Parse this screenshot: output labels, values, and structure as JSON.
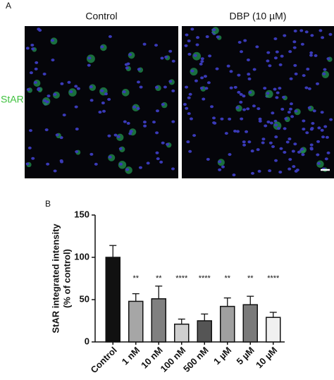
{
  "panel_a": {
    "label": "A",
    "columns": [
      "Control",
      "DBP (10 µM)"
    ],
    "row_label": "StAR"
  },
  "chart_data": {
    "type": "bar",
    "panel_label": "B",
    "ylabel": [
      "StAR integrated intensity",
      "(% of control)"
    ],
    "categories": [
      "Control",
      "1 nM",
      "10 nM",
      "100 nM",
      "500 nM",
      "1 µM",
      "5 µM",
      "10 µM"
    ],
    "values": [
      100,
      48,
      51,
      21,
      25,
      42,
      44,
      29
    ],
    "errors": [
      14,
      9,
      15,
      6,
      8,
      10,
      10,
      6
    ],
    "colors": [
      "#111111",
      "#a6a6a6",
      "#808080",
      "#cfcfcf",
      "#555555",
      "#a0a0a0",
      "#7a7a7a",
      "#f0f0f0"
    ],
    "annotations": [
      null,
      "**",
      "**",
      "****",
      "****",
      "**",
      "**",
      "****"
    ],
    "ylim": [
      0,
      150
    ],
    "yticks": [
      0,
      50,
      100,
      150
    ]
  }
}
